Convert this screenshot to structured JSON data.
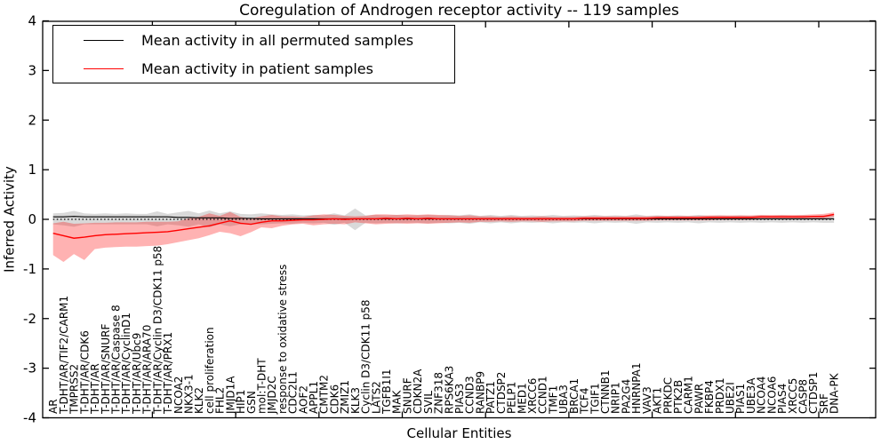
{
  "colors": {
    "background": "#ffffff",
    "axes": "#000000",
    "permuted_line": "#000000",
    "patient_line": "#ff0000",
    "permuted_band": "#000000",
    "patient_band": "#ff0000",
    "zero_line": "#000000"
  },
  "chart_data": {
    "type": "line",
    "title": "Coregulation of Androgen receptor activity -- 119 samples",
    "xlabel": "Cellular Entities",
    "ylabel": "Inferred Activity",
    "ylim": [
      -4,
      4
    ],
    "yticks": [
      4,
      3,
      2,
      1,
      0,
      -1,
      -2,
      -3,
      -4
    ],
    "grid": false,
    "legend_position": "upper left",
    "zero_reference_line": "dotted",
    "categories": [
      "AR",
      "T-DHT/AR/TIF2/CARM1",
      "TMPRSS2",
      "T-DHT/AR/CDK6",
      "T-DHT/AR",
      "T-DHT/AR/SNURF",
      "T-DHT/AR/Caspase 8",
      "T-DHT/AR/CyclinD1",
      "T-DHT/AR/Ubc9",
      "T-DHT/AR/ARA70",
      "T-DHT/AR/Cyclin D3/CDK11 p58",
      "T-DHT/AR/PRX1",
      "NCOA2",
      "NKX3-1",
      "KLK2",
      "cell proliferation",
      "FHL2",
      "JMJD1A",
      "HIP1",
      "GSN",
      "mol:T-DHT",
      "JMJD2C",
      "response to oxidative stress",
      "CDC2L1",
      "AOF2",
      "APPL1",
      "CMTM2",
      "CDK6",
      "ZMIZ1",
      "KLK3",
      "Cyclin D3/CDK11 p58",
      "LATS2",
      "TGFB1I1",
      "MAK",
      "SNURF",
      "CDKN2A",
      "SVIL",
      "ZNF318",
      "RPS6KA3",
      "PIAS3",
      "CCND3",
      "RANBP9",
      "PATZ1",
      "CTDSP2",
      "PELP1",
      "MED1",
      "XRCC6",
      "CCND1",
      "TMF1",
      "UBA3",
      "BRCA1",
      "TCF4",
      "TGIF1",
      "CTNNB1",
      "NRIP1",
      "PA2G4",
      "HNRNPA1",
      "VAV3",
      "AKT1",
      "PRKDC",
      "PTK2B",
      "CARM1",
      "PAWR",
      "FKBP4",
      "PRDX1",
      "UBE2I",
      "PIAS1",
      "UBE3A",
      "NCOA4",
      "NCOA6",
      "PIAS4",
      "XRCC5",
      "CASP8",
      "CTDSP1",
      "SRF",
      "DNA-PK"
    ],
    "series": [
      {
        "name": "Mean activity in all permuted samples",
        "color": "#000000",
        "values": [
          0.05,
          0.05,
          0.06,
          0.05,
          0.05,
          0.05,
          0.05,
          0.05,
          0.05,
          0.05,
          0.05,
          0.05,
          0.04,
          0.04,
          0.03,
          0.03,
          0.03,
          0.02,
          0.02,
          0.02,
          0.01,
          0.01,
          0.01,
          0.01,
          0.01,
          0.01,
          0.01,
          0.01,
          0.01,
          0.01,
          0.01,
          0.01,
          0.01,
          0.01,
          0.01,
          0.01,
          0.01,
          0.01,
          0.01,
          0.01,
          0.01,
          0.01,
          0.01,
          0.01,
          0.01,
          0.01,
          0.01,
          0.01,
          0.01,
          0.01,
          0.01,
          0.01,
          0.01,
          0.01,
          0.01,
          0.01,
          0.01,
          0.01,
          0.01,
          0.01,
          0.01,
          0.01,
          0.01,
          0.01,
          0.01,
          0.01,
          0.01,
          0.01,
          0.01,
          0.01,
          0.01,
          0.01,
          0.01,
          0.01,
          0.01,
          0.01
        ]
      },
      {
        "name": "Mean activity in patient samples",
        "color": "#ff0000",
        "values": [
          -0.28,
          -0.33,
          -0.38,
          -0.36,
          -0.33,
          -0.31,
          -0.3,
          -0.29,
          -0.28,
          -0.27,
          -0.26,
          -0.25,
          -0.22,
          -0.19,
          -0.16,
          -0.13,
          -0.08,
          -0.03,
          -0.08,
          -0.1,
          -0.06,
          -0.03,
          -0.03,
          -0.02,
          -0.01,
          -0.01,
          0.0,
          0.01,
          0.0,
          0.01,
          0.01,
          0.01,
          0.02,
          0.01,
          0.02,
          0.01,
          0.02,
          0.01,
          0.01,
          0.01,
          0.01,
          0.01,
          0.01,
          0.01,
          0.01,
          0.01,
          0.01,
          0.01,
          0.01,
          0.01,
          0.01,
          0.02,
          0.02,
          0.02,
          0.02,
          0.02,
          0.02,
          0.02,
          0.03,
          0.03,
          0.03,
          0.03,
          0.03,
          0.04,
          0.04,
          0.04,
          0.04,
          0.04,
          0.05,
          0.05,
          0.05,
          0.05,
          0.05,
          0.06,
          0.06,
          0.1
        ]
      }
    ],
    "bands": [
      {
        "name": "permuted-samples-range",
        "color": "#000000",
        "opacity": 0.15,
        "upper": [
          0.12,
          0.13,
          0.17,
          0.12,
          0.11,
          0.12,
          0.11,
          0.12,
          0.11,
          0.11,
          0.16,
          0.11,
          0.14,
          0.17,
          0.12,
          0.18,
          0.12,
          0.16,
          0.11,
          0.1,
          0.12,
          0.1,
          0.09,
          0.1,
          0.08,
          0.09,
          0.08,
          0.12,
          0.08,
          0.22,
          0.08,
          0.09,
          0.08,
          0.09,
          0.08,
          0.08,
          0.09,
          0.08,
          0.09,
          0.08,
          0.1,
          0.07,
          0.09,
          0.07,
          0.09,
          0.07,
          0.08,
          0.07,
          0.09,
          0.07,
          0.08,
          0.07,
          0.09,
          0.07,
          0.08,
          0.07,
          0.1,
          0.07,
          0.08,
          0.07,
          0.08,
          0.07,
          0.09,
          0.07,
          0.08,
          0.07,
          0.08,
          0.07,
          0.08,
          0.07,
          0.08,
          0.07,
          0.08,
          0.07,
          0.08,
          0.08
        ],
        "lower": [
          -0.1,
          -0.12,
          -0.15,
          -0.1,
          -0.1,
          -0.1,
          -0.1,
          -0.1,
          -0.1,
          -0.1,
          -0.14,
          -0.1,
          -0.12,
          -0.15,
          -0.1,
          -0.16,
          -0.1,
          -0.14,
          -0.1,
          -0.09,
          -0.1,
          -0.09,
          -0.08,
          -0.09,
          -0.07,
          -0.08,
          -0.07,
          -0.11,
          -0.07,
          -0.22,
          -0.07,
          -0.08,
          -0.07,
          -0.08,
          -0.07,
          -0.07,
          -0.08,
          -0.07,
          -0.08,
          -0.07,
          -0.09,
          -0.06,
          -0.08,
          -0.06,
          -0.08,
          -0.06,
          -0.07,
          -0.06,
          -0.08,
          -0.06,
          -0.07,
          -0.06,
          -0.08,
          -0.06,
          -0.07,
          -0.06,
          -0.09,
          -0.06,
          -0.07,
          -0.06,
          -0.07,
          -0.06,
          -0.08,
          -0.06,
          -0.07,
          -0.06,
          -0.07,
          -0.06,
          -0.07,
          -0.06,
          -0.07,
          -0.06,
          -0.07,
          -0.06,
          -0.07,
          -0.07
        ]
      },
      {
        "name": "patient-samples-range",
        "color": "#ff0000",
        "opacity": 0.3,
        "upper": [
          -0.08,
          -0.05,
          -0.09,
          -0.08,
          -0.07,
          -0.07,
          -0.06,
          -0.06,
          -0.06,
          -0.05,
          -0.05,
          -0.05,
          -0.04,
          0.02,
          0.05,
          0.12,
          0.07,
          0.15,
          0.05,
          0.02,
          0.06,
          0.09,
          0.06,
          0.06,
          0.05,
          0.08,
          0.1,
          0.09,
          0.07,
          0.06,
          0.07,
          0.1,
          0.1,
          0.09,
          0.1,
          0.09,
          0.1,
          0.09,
          0.08,
          0.07,
          0.08,
          0.06,
          0.06,
          0.05,
          0.06,
          0.05,
          0.05,
          0.06,
          0.05,
          0.05,
          0.05,
          0.06,
          0.06,
          0.06,
          0.06,
          0.06,
          0.06,
          0.06,
          0.07,
          0.07,
          0.07,
          0.07,
          0.07,
          0.08,
          0.08,
          0.08,
          0.08,
          0.08,
          0.09,
          0.09,
          0.09,
          0.09,
          0.09,
          0.1,
          0.11,
          0.14
        ],
        "lower": [
          -0.72,
          -0.86,
          -0.7,
          -0.82,
          -0.6,
          -0.57,
          -0.56,
          -0.55,
          -0.55,
          -0.54,
          -0.53,
          -0.5,
          -0.46,
          -0.42,
          -0.38,
          -0.32,
          -0.25,
          -0.28,
          -0.34,
          -0.26,
          -0.16,
          -0.18,
          -0.13,
          -0.1,
          -0.09,
          -0.12,
          -0.1,
          -0.09,
          -0.1,
          -0.06,
          -0.08,
          -0.1,
          -0.09,
          -0.08,
          -0.09,
          -0.08,
          -0.09,
          -0.08,
          -0.07,
          -0.06,
          -0.07,
          -0.05,
          -0.05,
          -0.04,
          -0.05,
          -0.04,
          -0.04,
          -0.05,
          -0.04,
          -0.04,
          -0.04,
          -0.03,
          -0.03,
          -0.03,
          -0.03,
          -0.03,
          -0.03,
          -0.03,
          -0.02,
          -0.02,
          -0.02,
          -0.02,
          -0.02,
          -0.02,
          -0.01,
          -0.01,
          -0.01,
          -0.01,
          0.0,
          0.0,
          0.0,
          0.0,
          0.01,
          0.01,
          0.02,
          0.05
        ]
      }
    ]
  }
}
